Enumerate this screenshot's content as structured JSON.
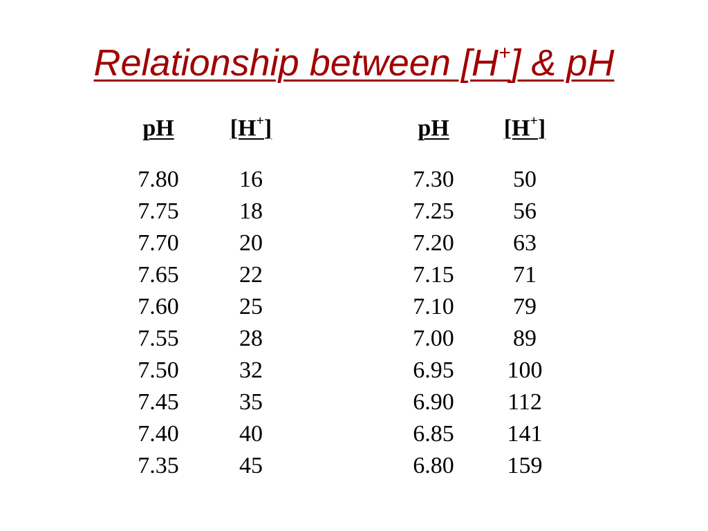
{
  "title": {
    "text_main": "Relationship between [H",
    "superscript": "+",
    "text_end": "] & pH",
    "color": "#a00000"
  },
  "tables": [
    {
      "headers": {
        "ph": "pH",
        "h_main": "[H",
        "h_sup": "+",
        "h_end": "]"
      },
      "ph_values": [
        "7.80",
        "7.75",
        "7.70",
        "7.65",
        "7.60",
        "7.55",
        "7.50",
        "7.45",
        "7.40",
        "7.35"
      ],
      "h_values": [
        "16",
        "18",
        "20",
        "22",
        "25",
        "28",
        "32",
        "35",
        "40",
        "45"
      ]
    },
    {
      "headers": {
        "ph": "pH",
        "h_main": "[H",
        "h_sup": "+",
        "h_end": "]"
      },
      "ph_values": [
        "7.30",
        "7.25",
        "7.20",
        "7.15",
        "7.10",
        "7.00",
        "6.95",
        "6.90",
        "6.85",
        "6.80"
      ],
      "h_values": [
        "50",
        "56",
        "63",
        "71",
        "79",
        "89",
        "100",
        "112",
        "141",
        "159"
      ]
    }
  ]
}
